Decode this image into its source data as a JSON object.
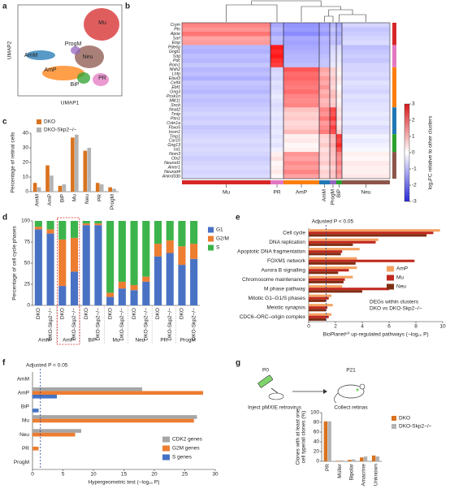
{
  "panels": [
    "a",
    "b",
    "c",
    "d",
    "e",
    "f",
    "g"
  ],
  "diagram": {
    "texts": [
      "P0",
      "P21",
      "Inject pMXIE retrovirus",
      "Collect retinas"
    ]
  },
  "chart_data": [
    {
      "type": "umap",
      "xlabel": "UMAP1",
      "ylabel": "UMAP2",
      "clusters": [
        "Mu",
        "Neu",
        "ProgM",
        "AmM",
        "AmP",
        "BiP",
        "PR"
      ],
      "colors": [
        "#d62728",
        "#8c564b",
        "#9467bd",
        "#1f77b4",
        "#ff7f0e",
        "#2ca02c",
        "#e377c2"
      ]
    },
    {
      "type": "heatmap",
      "rows": [
        "Crym",
        "Ptn",
        "Apoe",
        "Sarl",
        "Etsp",
        "Pde6g",
        "Gngt1",
        "Sag",
        "Pdc",
        "Rom1",
        "Nhlh2",
        "Lhfp",
        "Elavl3",
        "Celf4",
        "Ebf1",
        "Gng3",
        "Pcsk1n",
        "Mllt11",
        "Sncb",
        "Nnat2",
        "Tmip",
        "Ptm1",
        "Cntn1a",
        "Fbxo5",
        "Insm1",
        "Tmp1",
        "Car10",
        "Gng13",
        "Isl1",
        "Nnm3",
        "Otx2",
        "Neurod1",
        "Amer1",
        "Neurod4",
        "Ankrd33b"
      ],
      "columns": [
        "Mu",
        "PR",
        "AmP",
        "AmM",
        "ProgM",
        "BiP",
        "Neu"
      ],
      "column_colors": [
        "#d62728",
        "#e377c2",
        "#ff7f0e",
        "#1f77b4",
        "#9467bd",
        "#2ca02c",
        "#8c564b"
      ],
      "values": [
        [
          1.6,
          -1.2,
          -1.5,
          -1.3,
          -1.0,
          -1.2,
          -0.6
        ],
        [
          1.4,
          -1.0,
          -1.4,
          -1.2,
          -0.8,
          -1.0,
          -0.8
        ],
        [
          1.8,
          -1.2,
          -1.6,
          -1.4,
          -1.0,
          -1.2,
          -0.7
        ],
        [
          1.2,
          -0.9,
          -1.2,
          -1.0,
          -0.8,
          -0.9,
          -0.6
        ],
        [
          1.3,
          -1.0,
          -1.3,
          -1.1,
          -0.9,
          -1.0,
          -0.5
        ],
        [
          -1.0,
          3.0,
          -1.2,
          -1.0,
          -0.6,
          -0.5,
          -0.9
        ],
        [
          -1.1,
          2.8,
          -1.1,
          -1.0,
          -0.5,
          -0.4,
          -0.8
        ],
        [
          -0.9,
          3.0,
          -1.0,
          -0.9,
          -0.4,
          -0.3,
          -0.7
        ],
        [
          -1.0,
          2.7,
          -1.0,
          -0.8,
          -0.4,
          -0.3,
          -0.8
        ],
        [
          -0.8,
          2.5,
          -0.9,
          -0.8,
          -0.3,
          -0.2,
          -0.6
        ],
        [
          -1.0,
          -0.6,
          2.2,
          1.2,
          0.6,
          0.2,
          -0.6
        ],
        [
          -0.9,
          -0.5,
          1.9,
          1.0,
          0.5,
          0.1,
          -0.5
        ],
        [
          -1.1,
          -0.6,
          2.0,
          1.3,
          0.7,
          0.3,
          -0.6
        ],
        [
          -0.8,
          -0.4,
          1.8,
          1.1,
          0.6,
          0.2,
          -0.4
        ],
        [
          -0.9,
          -0.5,
          1.7,
          1.4,
          0.5,
          0.0,
          -0.5
        ],
        [
          -1.0,
          -0.4,
          1.9,
          1.0,
          0.8,
          0.2,
          -0.6
        ],
        [
          -0.8,
          -0.3,
          1.6,
          1.2,
          0.9,
          0.3,
          -0.4
        ],
        [
          -0.9,
          -0.4,
          1.5,
          0.9,
          0.6,
          0.1,
          -0.5
        ],
        [
          -0.8,
          -0.5,
          1.6,
          1.0,
          0.7,
          0.2,
          -0.4
        ],
        [
          -0.7,
          -0.4,
          0.8,
          1.6,
          2.4,
          0.4,
          -0.4
        ],
        [
          -0.6,
          -0.3,
          0.6,
          1.4,
          2.2,
          0.3,
          -0.3
        ],
        [
          -0.7,
          -0.4,
          0.7,
          1.8,
          2.6,
          0.5,
          -0.4
        ],
        [
          -0.6,
          -0.3,
          0.5,
          1.3,
          2.0,
          0.2,
          -0.3
        ],
        [
          -0.8,
          -0.4,
          0.6,
          1.5,
          2.5,
          0.4,
          -0.5
        ],
        [
          -0.7,
          -0.3,
          0.9,
          1.7,
          2.3,
          0.6,
          -0.4
        ],
        [
          -0.6,
          -0.4,
          0.2,
          0.6,
          1.0,
          2.6,
          -0.2
        ],
        [
          -0.5,
          -0.3,
          0.3,
          0.5,
          0.9,
          2.4,
          -0.3
        ],
        [
          -0.6,
          -0.4,
          0.1,
          0.7,
          1.1,
          2.8,
          -0.2
        ],
        [
          -0.5,
          -0.2,
          0.2,
          0.4,
          0.8,
          2.2,
          -0.1
        ],
        [
          -0.6,
          0.2,
          1.4,
          0.6,
          0.8,
          1.6,
          0.2
        ],
        [
          -0.7,
          0.4,
          1.2,
          0.5,
          0.7,
          1.4,
          0.1
        ],
        [
          -0.6,
          0.1,
          1.5,
          0.7,
          0.9,
          1.7,
          0.3
        ],
        [
          -0.5,
          0.2,
          1.3,
          0.4,
          0.6,
          1.3,
          0.2
        ],
        [
          -0.6,
          0.3,
          1.6,
          0.6,
          0.8,
          1.5,
          0.2
        ],
        [
          -0.5,
          0.1,
          1.2,
          0.5,
          0.7,
          1.2,
          0.3
        ]
      ],
      "clim": [
        -3,
        3
      ],
      "cticks": [
        -3,
        -2,
        -1,
        0,
        1,
        2,
        3
      ],
      "clabel": "log₂FC relative to other clusters"
    },
    {
      "type": "bar",
      "ylabel": "Percentage of retinal cells",
      "categories": [
        "AmM",
        "AmP",
        "BiP",
        "Mu",
        "Neu",
        "PR",
        "ProgM"
      ],
      "series": [
        {
          "name": "DKO",
          "color": "#d9731f",
          "values": [
            6,
            18,
            4,
            37,
            28,
            6,
            3
          ]
        },
        {
          "name": "DKO-Skp2−/−",
          "color": "#b3b3b3",
          "values": [
            3,
            11,
            5,
            39,
            30,
            5,
            2
          ]
        }
      ],
      "ylim": [
        0,
        40
      ],
      "yticks": [
        0,
        10,
        20,
        30,
        40
      ]
    },
    {
      "type": "stacked_bar",
      "ylabel": "Percentage of cell cycle phases",
      "categories": [
        "DKO",
        "DKO-Skp2−/−",
        "DKO",
        "DKO-Skp2−/−",
        "DKO",
        "DKO-Skp2−/−",
        "DKO",
        "DKO-Skp2−/−",
        "DKO",
        "DKO-Skp2−/−",
        "DKO",
        "DKO-Skp2−/−",
        "DKO",
        "DKO-Skp2−/−"
      ],
      "groups": [
        "AmM",
        "AmP",
        "BiP",
        "Mu",
        "Neu",
        "PR",
        "ProgM"
      ],
      "series": [
        {
          "name": "G1",
          "color": "#4a72c4",
          "values": [
            90,
            85,
            23,
            40,
            95,
            95,
            10,
            20,
            18,
            28,
            58,
            62,
            48,
            55
          ]
        },
        {
          "name": "G2/M",
          "color": "#ed7d31",
          "values": [
            3,
            5,
            55,
            40,
            2,
            2,
            5,
            8,
            6,
            6,
            15,
            15,
            22,
            18
          ]
        },
        {
          "name": "S",
          "color": "#3cb44b",
          "values": [
            7,
            10,
            22,
            20,
            3,
            3,
            85,
            72,
            76,
            66,
            27,
            23,
            30,
            27
          ]
        }
      ],
      "ylim": [
        0,
        100
      ],
      "yticks": [
        0,
        25,
        50,
        75,
        100
      ]
    },
    {
      "type": "hbar",
      "xlabel": "BioPlanet⁶⁰ up-regulated pathways (−log₁₀ P)",
      "annotation": "Adjusted P < 0.05",
      "threshold": 1.3,
      "note": [
        "DEGs within clusters",
        "DKO vs DKO-Skp2−/−"
      ],
      "categories": [
        "Cell cycle",
        "DNA replication",
        "Apoptotic DNA fragmentation",
        "FOXM1 network",
        "Aurora B signalling",
        "Chromosome maintenance",
        "M phase pathway",
        "Mitotic G1–G1/S phases",
        "Meiotic synapsis",
        "CDC6–ORC–origin complex"
      ],
      "series": [
        {
          "name": "AmP",
          "color": "#f4a261",
          "values": [
            9.8,
            5.2,
            3.8,
            3.6,
            3.6,
            3.3,
            2.5,
            1.7,
            1.8,
            1.7
          ]
        },
        {
          "name": "Mu",
          "color": "#c0281e",
          "values": [
            9.3,
            5.0,
            2.5,
            7.9,
            3.0,
            2.7,
            6.0,
            1.5,
            1.4,
            1.5
          ]
        },
        {
          "name": "Neu",
          "color": "#7f2d12",
          "values": [
            8.8,
            3.3,
            2.4,
            3.5,
            2.2,
            2.6,
            4.0,
            1.3,
            1.3,
            1.3
          ]
        }
      ],
      "xlim": [
        0,
        10
      ],
      "xticks": [
        0,
        2,
        4,
        6,
        8,
        10
      ]
    },
    {
      "type": "hbar",
      "xlabel": "Hypergeometric test (−log₁₀ P)",
      "annotation": "Adjusted P < 0.05",
      "threshold": 1.3,
      "categories": [
        "AmM",
        "AmP",
        "BiP",
        "Mu",
        "Neu",
        "PR",
        "ProgM"
      ],
      "series": [
        {
          "name": "CDK2 genes",
          "color": "#a6a6a6",
          "values": [
            0,
            18,
            0,
            27,
            8,
            0,
            0
          ]
        },
        {
          "name": "G2M genes",
          "color": "#ed7d31",
          "values": [
            0,
            28,
            0,
            26.5,
            7,
            1,
            0
          ]
        },
        {
          "name": "S genes",
          "color": "#4472c4",
          "values": [
            0,
            4,
            1,
            0,
            0,
            0,
            0
          ]
        }
      ],
      "xlim": [
        0,
        30
      ],
      "xticks": [
        0,
        5,
        10,
        15,
        20,
        25,
        30
      ]
    },
    {
      "type": "bar",
      "ylabel": [
        "Clones with at least one",
        "cell type/all clones (%)"
      ],
      "categories": [
        "PR",
        "Müller",
        "Bipolar",
        "Amacrine",
        "Unknown"
      ],
      "series": [
        {
          "name": "DKO",
          "color": "#d9731f",
          "values": [
            82,
            1,
            3,
            8,
            12
          ]
        },
        {
          "name": "DKO-Skp2−/−",
          "color": "#b3b3b3",
          "values": [
            82,
            2,
            4,
            10,
            10
          ]
        }
      ],
      "ylim": [
        0,
        100
      ],
      "yticks": [
        0,
        20,
        40,
        60,
        80,
        100
      ]
    }
  ]
}
